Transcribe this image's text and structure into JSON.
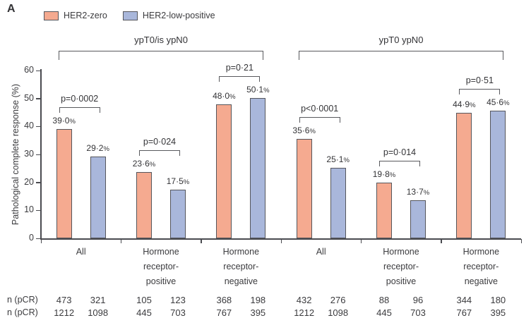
{
  "panel_label": "A",
  "legend": [
    {
      "label": "HER2-zero",
      "color": "#F5AA90"
    },
    {
      "label": "HER2-low-positive",
      "color": "#A9B7DB"
    }
  ],
  "colors": {
    "her2_zero_fill": "#F5AA90",
    "her2_low_fill": "#A9B7DB",
    "bar_border": "#55565c",
    "axis": "#4a4b50",
    "text": "#3b3b3e"
  },
  "chart_data": {
    "type": "bar",
    "title": "",
    "xlabel": "",
    "ylabel": "Pathological complete response (%)",
    "ylim": [
      0,
      60
    ],
    "yticks": [
      0,
      10,
      20,
      30,
      40,
      50,
      60
    ],
    "grid": false,
    "legend_position": "top-left",
    "series_names": [
      "HER2-zero",
      "HER2-low-positive"
    ],
    "table_row_labels": [
      "n (pCR)",
      "n (pCR)"
    ],
    "groups": [
      {
        "bracket_label": "ypT0/is ypN0",
        "categories": [
          {
            "label_lines": [
              "All"
            ],
            "bars": [
              {
                "series": "HER2-zero",
                "value": 39.0,
                "label": "39·0%"
              },
              {
                "series": "HER2-low-positive",
                "value": 29.2,
                "label": "29·2%"
              }
            ],
            "p_value": "p=0·0002",
            "n_pcr": [
              "473",
              "321"
            ],
            "n_total": [
              "1212",
              "1098"
            ]
          },
          {
            "label_lines": [
              "Hormone",
              "receptor-",
              "positive"
            ],
            "bars": [
              {
                "series": "HER2-zero",
                "value": 23.6,
                "label": "23·6%"
              },
              {
                "series": "HER2-low-positive",
                "value": 17.5,
                "label": "17·5%"
              }
            ],
            "p_value": "p=0·024",
            "n_pcr": [
              "105",
              "123"
            ],
            "n_total": [
              "445",
              "703"
            ]
          },
          {
            "label_lines": [
              "Hormone",
              "receptor-",
              "negative"
            ],
            "bars": [
              {
                "series": "HER2-zero",
                "value": 48.0,
                "label": "48·0%"
              },
              {
                "series": "HER2-low-positive",
                "value": 50.1,
                "label": "50·1%"
              }
            ],
            "p_value": "p=0·21",
            "n_pcr": [
              "368",
              "198"
            ],
            "n_total": [
              "767",
              "395"
            ]
          }
        ]
      },
      {
        "bracket_label": "ypT0 ypN0",
        "categories": [
          {
            "label_lines": [
              "All"
            ],
            "bars": [
              {
                "series": "HER2-zero",
                "value": 35.6,
                "label": "35·6%"
              },
              {
                "series": "HER2-low-positive",
                "value": 25.1,
                "label": "25·1%"
              }
            ],
            "p_value": "p<0·0001",
            "n_pcr": [
              "432",
              "276"
            ],
            "n_total": [
              "1212",
              "1098"
            ]
          },
          {
            "label_lines": [
              "Hormone",
              "receptor-",
              "positive"
            ],
            "bars": [
              {
                "series": "HER2-zero",
                "value": 19.8,
                "label": "19·8%"
              },
              {
                "series": "HER2-low-positive",
                "value": 13.7,
                "label": "13·7%"
              }
            ],
            "p_value": "p=0·014",
            "n_pcr": [
              "88",
              "96"
            ],
            "n_total": [
              "445",
              "703"
            ]
          },
          {
            "label_lines": [
              "Hormone",
              "receptor-",
              "negative"
            ],
            "bars": [
              {
                "series": "HER2-zero",
                "value": 44.9,
                "label": "44·9%"
              },
              {
                "series": "HER2-low-positive",
                "value": 45.6,
                "label": "45·6%"
              }
            ],
            "p_value": "p=0·51",
            "n_pcr": [
              "344",
              "180"
            ],
            "n_total": [
              "767",
              "395"
            ]
          }
        ]
      }
    ]
  }
}
